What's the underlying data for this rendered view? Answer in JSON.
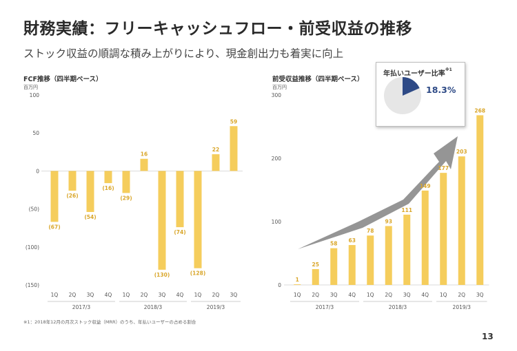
{
  "slide": {
    "title": "財務実績：フリーキャッシュフロー・前受収益の推移",
    "subtitle": "ストック収益の順調な積み上がりにより、現金創出力も着実に向上",
    "footnote": "※1：2018年12月の月次ストック収益（MRR）のうち、年払いユーザーの占める割合",
    "page_number": "13"
  },
  "colors": {
    "bar": "#f5cd5c",
    "label": "#d9a62a",
    "axis": "#555555",
    "pie_highlight": "#2e4a86",
    "pie_rest": "#e6e6e6",
    "arrow": "#8a8a8a"
  },
  "callout": {
    "title": "年払いユーザー比率",
    "note": "※1",
    "value_label": "18.3%",
    "value": 18.3
  },
  "chart_data": [
    {
      "type": "bar",
      "title": "FCF推移（四半期ベース）",
      "unit": "百万円",
      "categories": [
        "1Q",
        "2Q",
        "3Q",
        "4Q",
        "1Q",
        "2Q",
        "3Q",
        "4Q",
        "1Q",
        "2Q",
        "3Q"
      ],
      "groups": [
        {
          "label": "2017/3",
          "count": 4
        },
        {
          "label": "2018/3",
          "count": 4
        },
        {
          "label": "2019/3",
          "count": 3
        }
      ],
      "values": [
        -67,
        -26,
        -54,
        -16,
        -29,
        16,
        -130,
        -74,
        -128,
        22,
        59
      ],
      "value_labels": [
        "(67)",
        "(26)",
        "(54)",
        "(16)",
        "(29)",
        "16",
        "(130)",
        "(74)",
        "(128)",
        "22",
        "59"
      ],
      "ylim": [
        -150,
        100
      ],
      "yticks": [
        100,
        50,
        0,
        -50,
        -100,
        -150
      ],
      "ytick_labels": [
        "100",
        "50",
        "0",
        "(50)",
        "(100)",
        "(150)"
      ],
      "grid": false
    },
    {
      "type": "bar",
      "title": "前受収益推移（四半期ベース）",
      "unit": "百万円",
      "categories": [
        "1Q",
        "2Q",
        "3Q",
        "4Q",
        "1Q",
        "2Q",
        "3Q",
        "4Q",
        "1Q",
        "2Q",
        "3Q"
      ],
      "groups": [
        {
          "label": "2017/3",
          "count": 4
        },
        {
          "label": "2018/3",
          "count": 4
        },
        {
          "label": "2019/3",
          "count": 3
        }
      ],
      "values": [
        1,
        25,
        58,
        63,
        78,
        93,
        111,
        149,
        177,
        203,
        268
      ],
      "value_labels": [
        "1",
        "25",
        "58",
        "63",
        "78",
        "93",
        "111",
        "149",
        "177",
        "203",
        "268"
      ],
      "ylim": [
        0,
        300
      ],
      "yticks": [
        300,
        200,
        100,
        0
      ],
      "ytick_labels": [
        "300",
        "200",
        "100",
        "0"
      ],
      "grid": false
    }
  ]
}
